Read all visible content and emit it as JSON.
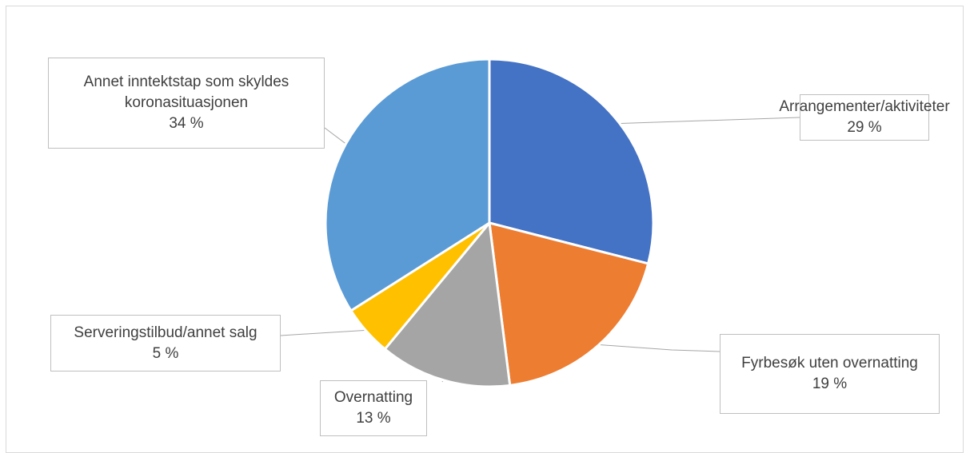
{
  "chart_data": {
    "type": "pie",
    "title": "",
    "slices": [
      {
        "label": "Arrangementer/aktiviteter",
        "value": 29,
        "value_label": "29 %",
        "color": "#4472C4"
      },
      {
        "label": "Fyrbesøk uten overnatting",
        "value": 19,
        "value_label": "19 %",
        "color": "#ED7D31"
      },
      {
        "label": "Overnatting",
        "value": 13,
        "value_label": "13 %",
        "color": "#A5A5A5"
      },
      {
        "label": "Serveringstilbud/annet salg",
        "value": 5,
        "value_label": "5 %",
        "color": "#FFC000"
      },
      {
        "label": "Annet inntektstap som skyldes koronasituasjonen",
        "value": 34,
        "value_label": "34 %",
        "color": "#5B9BD5"
      }
    ],
    "start_angle": "12 o'clock",
    "direction": "clockwise",
    "legend": "none",
    "data_labels": "callouts"
  },
  "callouts": [
    {
      "line1": "Arrangementer/aktiviteter",
      "line2": "",
      "pct": "29 %"
    },
    {
      "line1": "Fyrbesøk uten overnatting",
      "line2": "",
      "pct": "19 %"
    },
    {
      "line1": "Overnatting",
      "line2": "",
      "pct": "13 %"
    },
    {
      "line1": "Serveringstilbud/annet salg",
      "line2": "",
      "pct": "5 %"
    },
    {
      "line1": "Annet inntektstap som skyldes",
      "line2": "koronasituasjonen",
      "pct": "34 %"
    }
  ]
}
